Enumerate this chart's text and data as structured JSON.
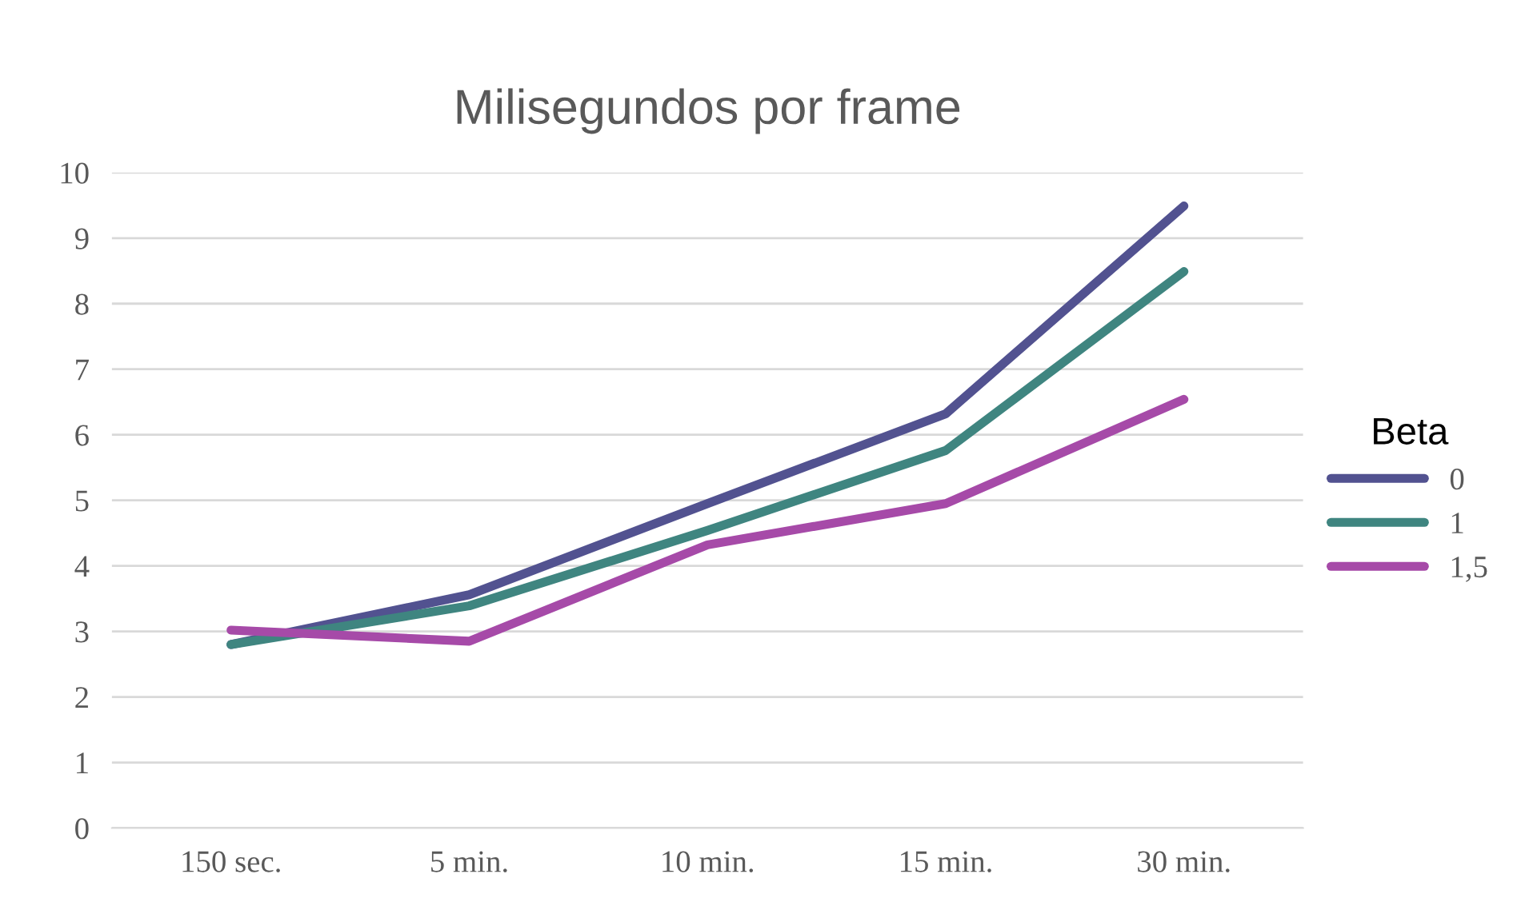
{
  "chart_data": {
    "type": "line",
    "title": "Milisegundos por frame",
    "legend_title": "Beta",
    "categories": [
      "150 sec.",
      "5 min.",
      "10 min.",
      "15 min.",
      "30 min."
    ],
    "series": [
      {
        "name": "0",
        "color": "#525290",
        "values": [
          2.8,
          3.56,
          4.95,
          6.32,
          9.49
        ]
      },
      {
        "name": "1",
        "color": "#3f8580",
        "values": [
          2.8,
          3.39,
          4.54,
          5.76,
          8.49
        ]
      },
      {
        "name": "1,5",
        "color": "#a64aa8",
        "values": [
          3.02,
          2.85,
          4.32,
          4.95,
          6.54
        ]
      }
    ],
    "ylim": [
      0,
      10
    ],
    "yticks": [
      0,
      1,
      2,
      3,
      4,
      5,
      6,
      7,
      8,
      9,
      10
    ],
    "grid": "y",
    "legend": "right",
    "marker": "none",
    "line_style": "solid"
  }
}
